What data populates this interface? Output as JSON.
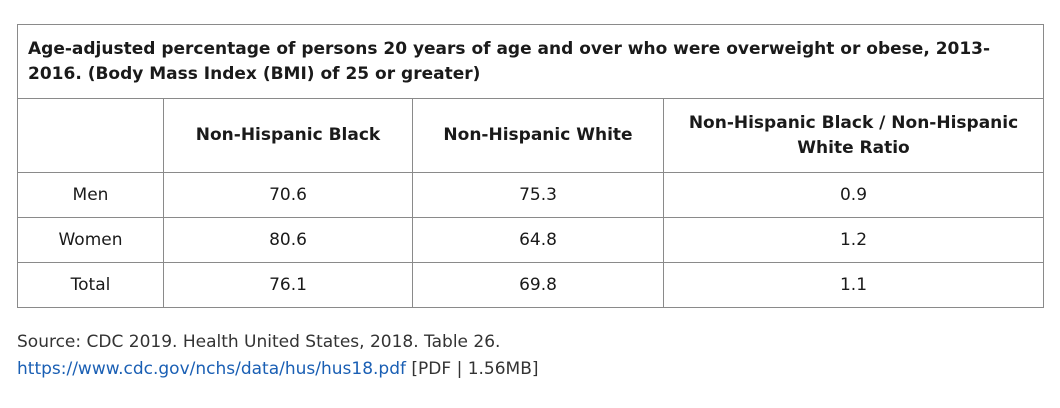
{
  "table": {
    "caption": "Age-adjusted percentage of persons 20 years of age and over who were overweight or obese, 2013-2016. (Body Mass Index (BMI) of 25 or greater)",
    "headers": [
      "",
      "Non-Hispanic Black",
      "Non-Hispanic White",
      "Non-Hispanic Black / Non-Hispanic White Ratio"
    ],
    "rows": [
      {
        "label": "Men",
        "black": "70.6",
        "white": "75.3",
        "ratio": "0.9"
      },
      {
        "label": "Women",
        "black": "80.6",
        "white": "64.8",
        "ratio": "1.2"
      },
      {
        "label": "Total",
        "black": "76.1",
        "white": "69.8",
        "ratio": "1.1"
      }
    ]
  },
  "source": {
    "text": "Source: CDC 2019. Health United States, 2018. Table 26.",
    "link_text": "https://www.cdc.gov/nchs/data/hus/hus18.pdf",
    "link_suffix": "[PDF | 1.56MB]"
  },
  "colors": {
    "border": "#8a8a8a",
    "link": "#1a5fb4",
    "text": "#1a1a1a"
  }
}
